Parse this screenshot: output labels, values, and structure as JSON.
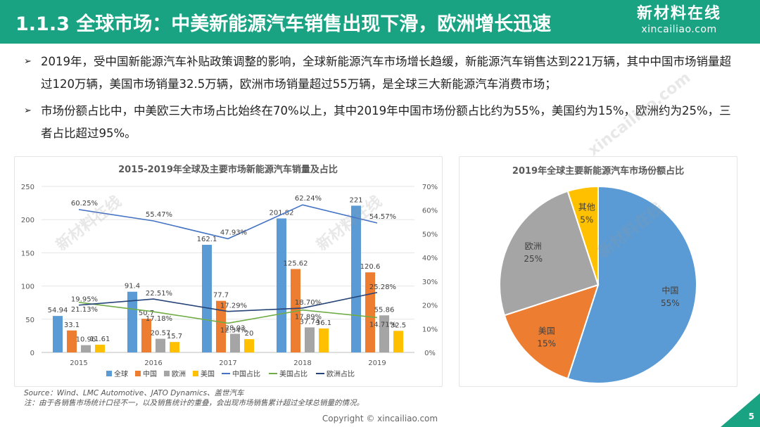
{
  "header": {
    "title": "1.1.3 全球市场：中美新能源汽车销售出现下滑，欧洲增长迅速",
    "logo_main": "新材料在线",
    "logo_sub": "xincailiao.com"
  },
  "bullets": [
    {
      "arrow": "➢",
      "text": "2019年，受中国新能源汽车补贴政策调整的影响，全球新能源汽车市场增长趋缓，新能源汽车销售达到221万辆，其中中国市场销量超过120万辆，美国市场销量32.5万辆，欧洲市场销量超过55万辆，是全球三大新能源汽车消费市场；"
    },
    {
      "arrow": "➢",
      "text": "市场份额占比中，中美欧三大市场占比始终在70%以上，其中2019年中国市场份额占比约为55%，美国约为15%，欧洲约为25%，三者占比超过95%。"
    }
  ],
  "watermark": {
    "main": "新材料在线",
    "sub": "xincailiao.com"
  },
  "chart_data": [
    {
      "type": "bar",
      "title": "2015-2019年全球及主要市场新能源汽车销量及占比",
      "categories": [
        "2015",
        "2016",
        "2017",
        "2018",
        "2019"
      ],
      "ylim": [
        0,
        250
      ],
      "yticks": [
        "0",
        "50",
        "100",
        "150",
        "200",
        "250"
      ],
      "y2lim": [
        0,
        70
      ],
      "y2ticks": [
        "0%",
        "10%",
        "20%",
        "30%",
        "40%",
        "50%",
        "60%",
        "70%"
      ],
      "series": [
        {
          "name": "全球",
          "color": "#5b9bd5",
          "values": [
            54.94,
            91.4,
            162.1,
            201.82,
            221
          ],
          "labels": [
            "54.94",
            "91.4",
            "162.1",
            "201.82",
            "221"
          ]
        },
        {
          "name": "中国",
          "color": "#ed7d31",
          "values": [
            33.1,
            50.7,
            77.7,
            125.62,
            120.6
          ],
          "labels": [
            "33.1",
            "50.7",
            "77.7",
            "125.62",
            "120.6"
          ]
        },
        {
          "name": "欧洲",
          "color": "#a5a5a5",
          "values": [
            10.96,
            20.57,
            28.03,
            37.74,
            55.86
          ],
          "labels": [
            "10.96",
            "20.57",
            "28.03",
            "37.74",
            "55.86"
          ]
        },
        {
          "name": "美国",
          "color": "#ffc000",
          "values": [
            11.61,
            15.7,
            20,
            36.1,
            32.5
          ],
          "labels": [
            "11.61",
            "15.7",
            "20",
            "36.1",
            "32.5"
          ]
        }
      ],
      "line_series": [
        {
          "name": "中国占比",
          "color": "#4472c4",
          "values": [
            60.25,
            55.47,
            47.93,
            62.24,
            54.57
          ],
          "labels": [
            "60.25%",
            "55.47%",
            "47.93%",
            "62.24%",
            "54.57%"
          ]
        },
        {
          "name": "美国占比",
          "color": "#70ad47",
          "values": [
            21.13,
            17.18,
            12.34,
            17.89,
            14.71
          ],
          "labels": [
            "21.13%",
            "17.18%",
            "12.34%",
            "17.89%",
            "14.71%"
          ]
        },
        {
          "name": "欧洲占比",
          "color": "#264478",
          "values": [
            19.95,
            22.51,
            17.29,
            18.7,
            25.28
          ],
          "labels": [
            "19.95%",
            "22.51%",
            "17.29%",
            "18.70%",
            "25.28%"
          ]
        }
      ]
    },
    {
      "type": "pie",
      "title": "2019年全球主要新能源汽车市场份额占比",
      "slices": [
        {
          "name": "中国",
          "value": 55,
          "label": "55%",
          "color": "#5b9bd5"
        },
        {
          "name": "美国",
          "value": 15,
          "label": "15%",
          "color": "#ed7d31"
        },
        {
          "name": "欧洲",
          "value": 25,
          "label": "25%",
          "color": "#a5a5a5"
        },
        {
          "name": "其他",
          "value": 5,
          "label": "5%",
          "color": "#ffc000"
        }
      ]
    }
  ],
  "source": {
    "line1": "Source：Wind、LMC Automotive、JATO Dynamics、盖世汽车",
    "line2": "注：由于各销售市场统计口径不一，以及销售统计的重叠，会出现市场销售累计超过全球总销量的情况。"
  },
  "copyright": "Copyright © xincailiao.com",
  "page_number": "5"
}
